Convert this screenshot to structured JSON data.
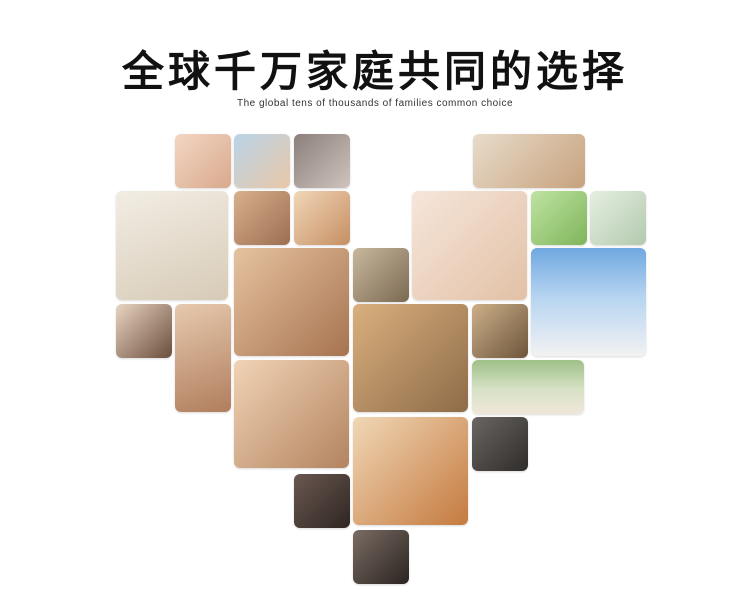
{
  "header": {
    "title": "全球千万家庭共同的选择",
    "subtitle": "The global tens of thousands of families common choice"
  },
  "colors": {
    "text": "#111111",
    "background": "#ffffff"
  }
}
